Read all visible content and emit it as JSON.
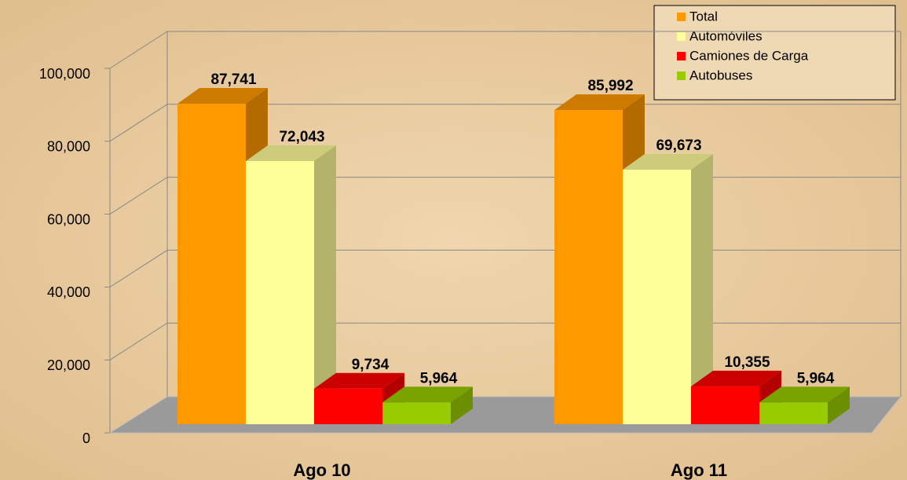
{
  "chart_data": {
    "type": "bar3d",
    "categories": [
      "Ago 10",
      "Ago 11"
    ],
    "series": [
      {
        "name": "Total",
        "color": "#ff9900",
        "values": [
          87741,
          85992
        ],
        "value_labels": [
          "87,741",
          "85,992"
        ]
      },
      {
        "name": "Automóviles",
        "color": "#ffff99",
        "values": [
          72043,
          69673
        ],
        "value_labels": [
          "72,043",
          "69,673"
        ]
      },
      {
        "name": "Camiones de Carga",
        "color": "#ff0000",
        "values": [
          9734,
          10355
        ],
        "value_labels": [
          "9,734",
          "10,355"
        ]
      },
      {
        "name": "Autobuses",
        "color": "#99cc00",
        "values": [
          5964,
          5964
        ],
        "value_labels": [
          "5,964",
          "5,964"
        ]
      }
    ],
    "ylim": [
      0,
      100000
    ],
    "yticks": [
      0,
      {
        "value": 20000,
        "label": "20,000"
      },
      {
        "value": 40000,
        "label": "40,000"
      },
      {
        "value": 60000,
        "label": "60,000"
      },
      {
        "value": 80000,
        "label": "80,000"
      },
      {
        "value": 100000,
        "label": "100,000"
      }
    ],
    "grid": true,
    "legend": "top-right"
  }
}
